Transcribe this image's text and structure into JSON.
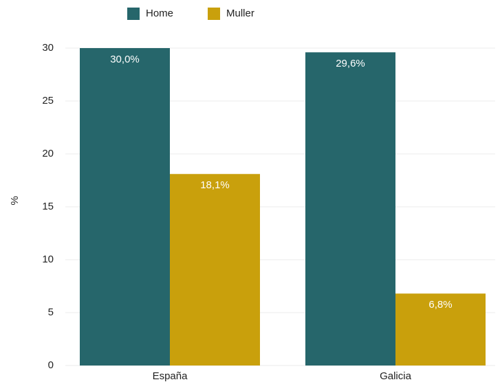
{
  "chart_data": {
    "type": "bar",
    "categories": [
      "España",
      "Galicia"
    ],
    "series": [
      {
        "name": "Home",
        "color": "#26666b",
        "values": [
          30.0,
          29.6
        ],
        "value_labels": [
          "30,0%",
          "29,6%"
        ]
      },
      {
        "name": "Muller",
        "color": "#c9a00c",
        "values": [
          18.1,
          6.8
        ],
        "value_labels": [
          "18,1%",
          "6,8%"
        ]
      }
    ],
    "y_label": "%",
    "ylim": [
      0,
      30
    ],
    "yticks": [
      0,
      5,
      10,
      15,
      20,
      25,
      30
    ],
    "grid": true,
    "legend": "top"
  }
}
